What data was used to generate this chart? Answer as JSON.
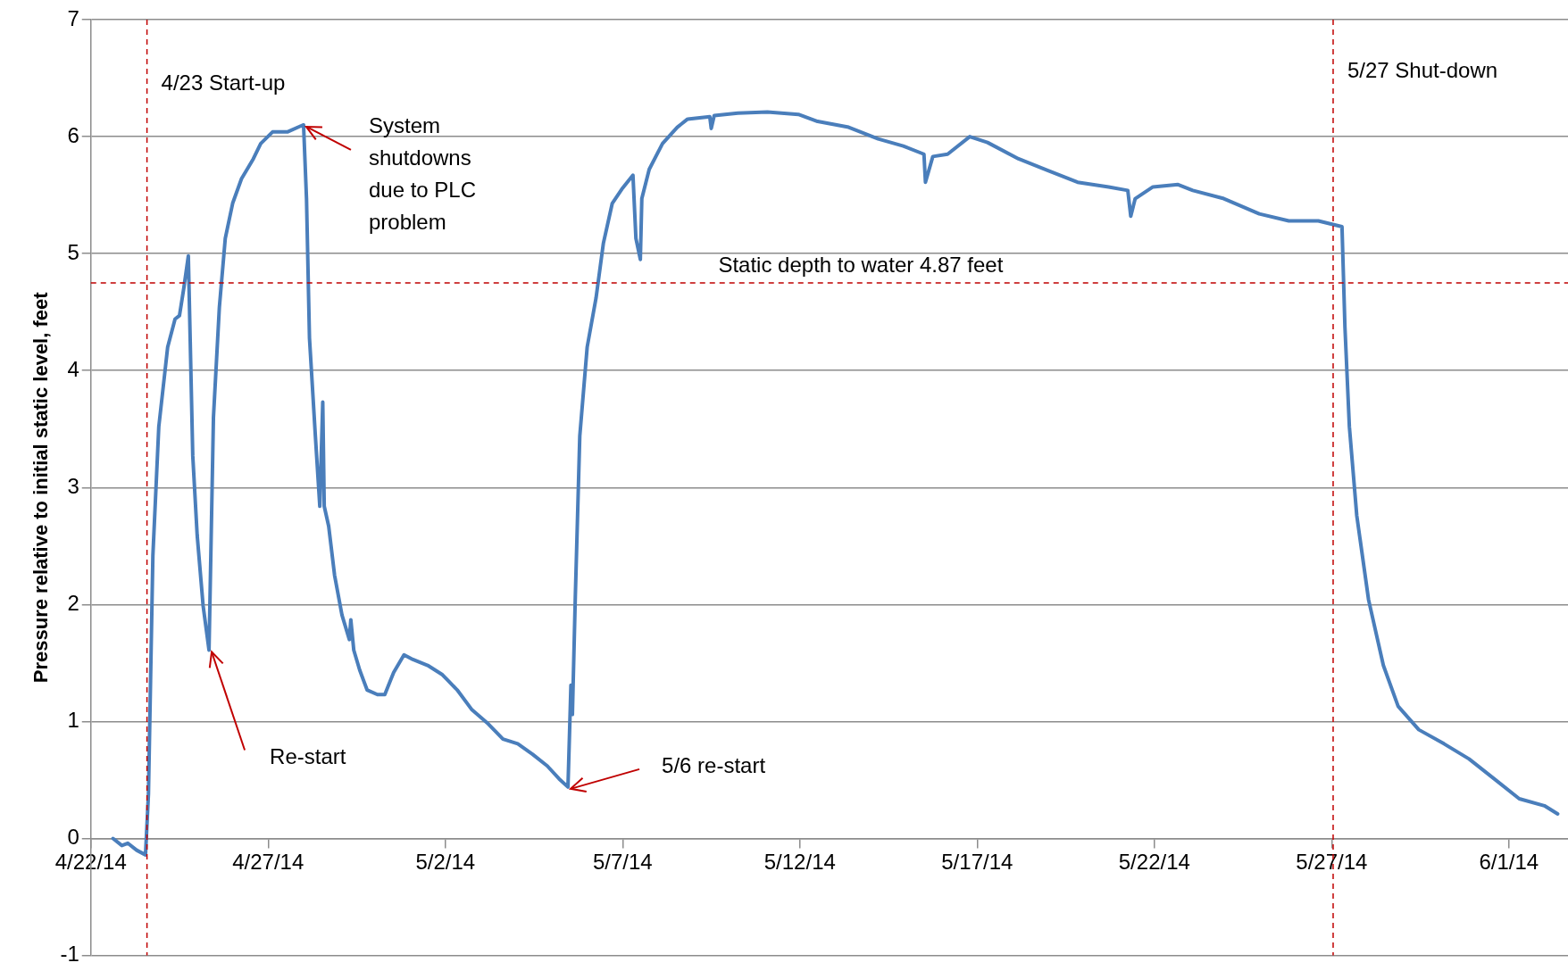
{
  "chart_data": {
    "type": "line",
    "ylabel": "Pressure relative to initial static level, feet",
    "x": [
      "--04-22T15:00",
      "--04-22T21:00",
      "--04-23T01:00",
      "--04-23T07:00",
      "--04-23T13:00",
      "--04-23T15:00",
      "--04-23T18:00",
      "--04-23T22:00",
      "--04-24T04:00",
      "--04-24T09:00",
      "--04-24T12:00",
      "--04-24T15:00",
      "--04-24T18:00",
      "--04-24T21:00",
      "--04-25T00:00",
      "--04-25T04:00",
      "--04-25T08:00",
      "--04-25T11:00",
      "--04-25T15:00",
      "--04-25T19:00",
      "--04-26T00:00",
      "--04-26T06:00",
      "--04-26T14:00",
      "--04-26T19:00",
      "--04-27T03:00",
      "--04-27T13:00",
      "--04-27T22:00",
      "--04-28T00:00",
      "--04-28T02:00",
      "--04-28T04:00",
      "--04-28T08:00",
      "--04-28T11:00",
      "--04-28T13:00",
      "--04-28T14:00",
      "--04-28T17:00",
      "--04-28T21:00",
      "--04-29T02:00",
      "--04-29T07:00",
      "--04-29T08:00",
      "--04-29T10:00",
      "--04-29T14:00",
      "--04-29T19:00",
      "--04-30T02:00",
      "--04-30T07:00",
      "--04-30T13:00",
      "--04-30T20:00",
      "--05-01T02:00",
      "--05-01T12:00",
      "--05-01T22:00",
      "--05-02T08:00",
      "--05-02T18:00",
      "--05-03T05:00",
      "--05-03T15:00",
      "--05-04T01:00",
      "--05-04T11:00",
      "--05-04T21:00",
      "--05-05T05:00",
      "--05-05T11:00",
      "--05-05T13:00",
      "--05-05T14:00",
      "--05-05T16:00",
      "--05-05T19:00",
      "--05-06T00:00",
      "--05-06T06:00",
      "--05-06T11:00",
      "--05-06T17:00",
      "--05-07T00:00",
      "--05-07T07:00",
      "--05-07T09:00",
      "--05-07T12:00",
      "--05-07T13:00",
      "--05-07T18:00",
      "--05-08T03:00",
      "--05-08T13:00",
      "--05-08T20:00",
      "--05-09T11:00",
      "--05-09T12:00",
      "--05-09T14:00",
      "--05-10T06:00",
      "--05-11T02:00",
      "--05-11T23:00",
      "--05-12T12:00",
      "--05-13T09:00",
      "--05-14T05:00",
      "--05-14T22:00",
      "--05-15T12:00",
      "--05-15T13:00",
      "--05-15T18:00",
      "--05-16T04:00",
      "--05-16T19:00",
      "--05-17T07:00",
      "--05-18T04:00",
      "--05-19T00:00",
      "--05-19T20:00",
      "--05-20T17:00",
      "--05-21T06:00",
      "--05-21T08:00",
      "--05-21T11:00",
      "--05-21T23:00",
      "--05-22T16:00",
      "--05-23T02:00",
      "--05-23T23:00",
      "--05-24T23:00",
      "--05-25T19:00",
      "--05-26T15:00",
      "--05-27T07:00",
      "--05-27T09:00",
      "--05-27T12:00",
      "--05-27T17:00",
      "--05-28T01:00",
      "--05-28T11:00",
      "--05-28T21:00",
      "--05-29T11:00",
      "--05-30T04:00",
      "--05-30T21:00",
      "--05-31T14:00",
      "--06-01T07:00",
      "--06-02T00:00",
      "--06-02T09:00"
    ],
    "series": [
      {
        "color": "#4a7ebb",
        "values": [
          0,
          -0.06,
          -0.04,
          -0.1,
          -0.14,
          0.38,
          2.42,
          3.52,
          4.2,
          4.44,
          4.47,
          4.71,
          4.98,
          3.27,
          2.59,
          1.99,
          1.61,
          3.6,
          4.54,
          5.13,
          5.43,
          5.64,
          5.81,
          5.94,
          6.04,
          6.04,
          6.09,
          6.1,
          5.47,
          4.28,
          3.44,
          2.84,
          3.73,
          2.84,
          2.67,
          2.25,
          1.91,
          1.7,
          1.87,
          1.61,
          1.44,
          1.27,
          1.23,
          1.23,
          1.42,
          1.57,
          1.53,
          1.48,
          1.4,
          1.27,
          1.1,
          0.98,
          0.85,
          0.81,
          0.72,
          0.62,
          0.51,
          0.44,
          1.31,
          1.06,
          2.08,
          3.44,
          4.2,
          4.62,
          5.09,
          5.43,
          5.56,
          5.67,
          5.13,
          4.95,
          5.47,
          5.72,
          5.94,
          6.08,
          6.15,
          6.17,
          6.07,
          6.18,
          6.2,
          6.21,
          6.19,
          6.13,
          6.08,
          5.98,
          5.92,
          5.85,
          5.61,
          5.83,
          5.85,
          6.0,
          5.95,
          5.81,
          5.71,
          5.61,
          5.57,
          5.54,
          5.32,
          5.47,
          5.57,
          5.59,
          5.54,
          5.47,
          5.34,
          5.28,
          5.28,
          5.23,
          4.37,
          3.52,
          2.76,
          2.04,
          1.48,
          1.13,
          0.93,
          0.81,
          0.68,
          0.51,
          0.34,
          0.28,
          0.21
        ]
      }
    ],
    "xlim": [
      "--04-22",
      "--06-02T16:00"
    ],
    "xticks": [
      {
        "value": "--04-22",
        "label": "4/22/14"
      },
      {
        "value": "--04-27",
        "label": "4/27/14"
      },
      {
        "value": "--05-02",
        "label": "5/2/14"
      },
      {
        "value": "--05-07",
        "label": "5/7/14"
      },
      {
        "value": "--05-12",
        "label": "5/12/14"
      },
      {
        "value": "--05-17",
        "label": "5/17/14"
      },
      {
        "value": "--05-22",
        "label": "5/22/14"
      },
      {
        "value": "--05-27",
        "label": "5/27/14"
      },
      {
        "value": "--06-01",
        "label": "6/1/14"
      }
    ],
    "ylim": [
      -1,
      7
    ],
    "yticks": [
      -1,
      0,
      1,
      2,
      3,
      4,
      5,
      6,
      7
    ],
    "grid": "y",
    "legend": false,
    "marker": "none",
    "line_style": "solid",
    "ref_lines": [
      {
        "axis": "x",
        "value": "--04-23T14:00",
        "label": "4/23 Start-up",
        "color": "#c00000",
        "line_style": "dashed"
      },
      {
        "axis": "x",
        "value": "--05-27T01:00",
        "label": "5/27 Shut-down",
        "color": "#c00000",
        "line_style": "dashed"
      },
      {
        "axis": "y",
        "value": 4.75,
        "label": "Static depth to water 4.87 feet",
        "color": "#c00000",
        "line_style": "dashed"
      }
    ],
    "annotations": [
      {
        "text": "System shutdowns due to PLC problem",
        "x": "--04-28T00:00",
        "y": 6.1
      },
      {
        "text": "Re-start",
        "x": "--04-25T08:00",
        "y": 1.61
      },
      {
        "text": "5/6 re-start",
        "x": "--05-05T11:00",
        "y": 0.44
      }
    ]
  }
}
